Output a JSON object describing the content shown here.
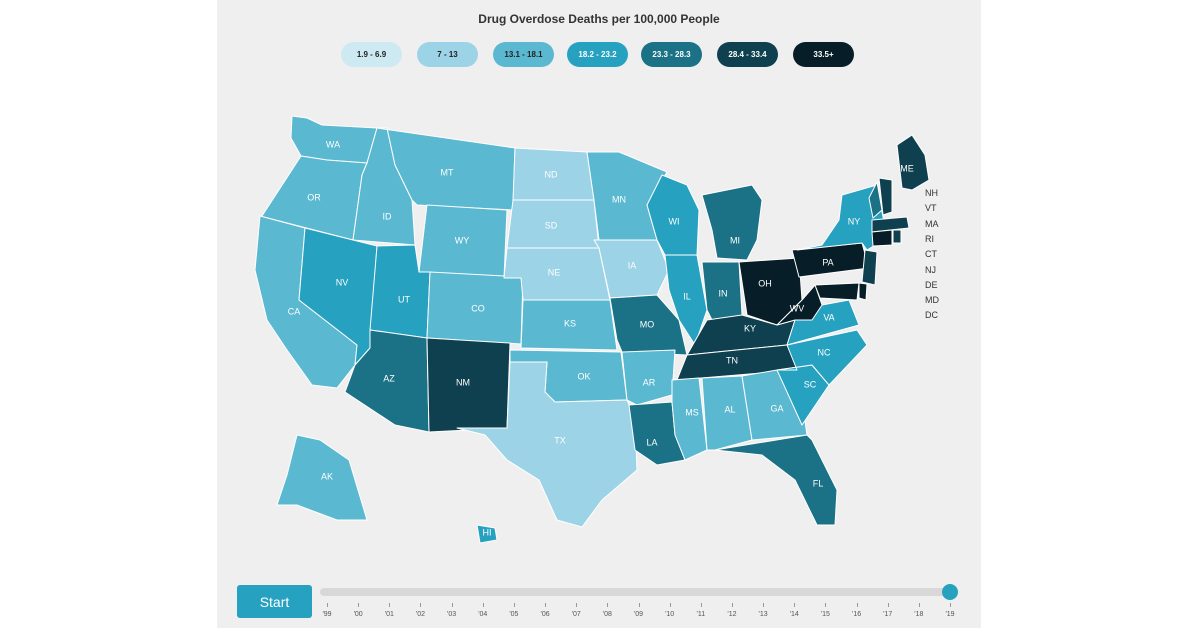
{
  "title": "Drug Overdose Deaths per 100,000 People",
  "legend": [
    {
      "label": "1.9 - 6.9",
      "color": "#cdeaf3",
      "text": "#222222"
    },
    {
      "label": "7 - 13",
      "color": "#9dd3e6",
      "text": "#222222"
    },
    {
      "label": "13.1 - 18.1",
      "color": "#5ab8d0",
      "text": "#222222"
    },
    {
      "label": "18.2 - 23.2",
      "color": "#27a1c0",
      "text": "#ffffff"
    },
    {
      "label": "23.3 - 28.3",
      "color": "#1b7185",
      "text": "#ffffff"
    },
    {
      "label": "28.4 - 33.4",
      "color": "#0f4050",
      "text": "#ffffff"
    },
    {
      "label": "33.5+",
      "color": "#071d27",
      "text": "#ffffff"
    }
  ],
  "states": [
    {
      "abbr": "WA",
      "bin": 2
    },
    {
      "abbr": "OR",
      "bin": 2
    },
    {
      "abbr": "CA",
      "bin": 2
    },
    {
      "abbr": "ID",
      "bin": 2
    },
    {
      "abbr": "NV",
      "bin": 3
    },
    {
      "abbr": "MT",
      "bin": 2
    },
    {
      "abbr": "WY",
      "bin": 2
    },
    {
      "abbr": "UT",
      "bin": 3
    },
    {
      "abbr": "AZ",
      "bin": 4
    },
    {
      "abbr": "CO",
      "bin": 2
    },
    {
      "abbr": "NM",
      "bin": 5
    },
    {
      "abbr": "ND",
      "bin": 1
    },
    {
      "abbr": "SD",
      "bin": 1
    },
    {
      "abbr": "NE",
      "bin": 1
    },
    {
      "abbr": "KS",
      "bin": 2
    },
    {
      "abbr": "OK",
      "bin": 2
    },
    {
      "abbr": "TX",
      "bin": 1
    },
    {
      "abbr": "MN",
      "bin": 2
    },
    {
      "abbr": "IA",
      "bin": 1
    },
    {
      "abbr": "MO",
      "bin": 4
    },
    {
      "abbr": "AR",
      "bin": 2
    },
    {
      "abbr": "LA",
      "bin": 4
    },
    {
      "abbr": "WI",
      "bin": 3
    },
    {
      "abbr": "IL",
      "bin": 3
    },
    {
      "abbr": "MI",
      "bin": 4
    },
    {
      "abbr": "IN",
      "bin": 4
    },
    {
      "abbr": "OH",
      "bin": 6
    },
    {
      "abbr": "KY",
      "bin": 5
    },
    {
      "abbr": "TN",
      "bin": 5
    },
    {
      "abbr": "MS",
      "bin": 2
    },
    {
      "abbr": "AL",
      "bin": 2
    },
    {
      "abbr": "GA",
      "bin": 2
    },
    {
      "abbr": "FL",
      "bin": 4
    },
    {
      "abbr": "SC",
      "bin": 3
    },
    {
      "abbr": "NC",
      "bin": 3
    },
    {
      "abbr": "VA",
      "bin": 3
    },
    {
      "abbr": "WV",
      "bin": 6
    },
    {
      "abbr": "PA",
      "bin": 6
    },
    {
      "abbr": "NY",
      "bin": 3
    },
    {
      "abbr": "ME",
      "bin": 5
    },
    {
      "abbr": "AK",
      "bin": 2
    },
    {
      "abbr": "HI",
      "bin": 3
    },
    {
      "abbr": "VT",
      "bin": 4
    },
    {
      "abbr": "NH",
      "bin": 5
    },
    {
      "abbr": "MA",
      "bin": 5
    },
    {
      "abbr": "CT",
      "bin": 6
    },
    {
      "abbr": "RI",
      "bin": 5
    },
    {
      "abbr": "NJ",
      "bin": 5
    },
    {
      "abbr": "DE",
      "bin": 6
    },
    {
      "abbr": "MD",
      "bin": 6
    }
  ],
  "small_state_labels": [
    "NH",
    "VT",
    "MA",
    "RI",
    "CT",
    "NJ",
    "DE",
    "MD",
    "DC"
  ],
  "controls": {
    "start_label": "Start",
    "selected_year": "'19"
  },
  "years": [
    "'99",
    "'00",
    "'01",
    "'02",
    "'03",
    "'04",
    "'05",
    "'06",
    "'07",
    "'08",
    "'09",
    "'10",
    "'11",
    "'12",
    "'13",
    "'14",
    "'15",
    "'16",
    "'17",
    "'18",
    "'19"
  ]
}
